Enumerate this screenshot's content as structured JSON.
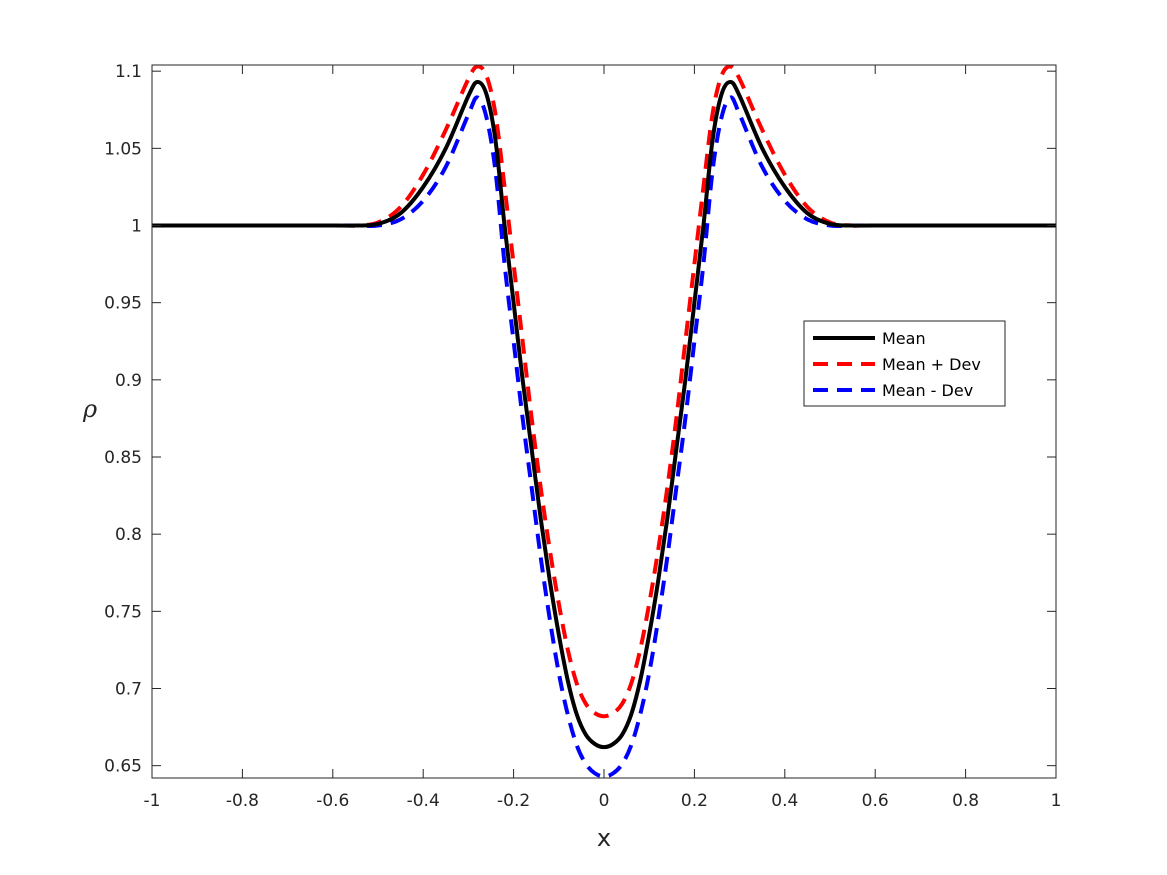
{
  "chart_data": {
    "type": "line",
    "title": "",
    "xlabel": "x",
    "ylabel": "ρ",
    "xlim": [
      -1,
      1
    ],
    "ylim": [
      0.642,
      1.104
    ],
    "xticks": [
      -1,
      -0.8,
      -0.6,
      -0.4,
      -0.2,
      0,
      0.2,
      0.4,
      0.6,
      0.8,
      1
    ],
    "xtick_labels": [
      "-1",
      "-0.8",
      "-0.6",
      "-0.4",
      "-0.2",
      "0",
      "0.2",
      "0.4",
      "0.6",
      "0.8",
      "1"
    ],
    "yticks": [
      0.65,
      0.7,
      0.75,
      0.8,
      0.85,
      0.9,
      0.95,
      1,
      1.05,
      1.1
    ],
    "ytick_labels": [
      "0.65",
      "0.7",
      "0.75",
      "0.8",
      "0.85",
      "0.9",
      "0.95",
      "1",
      "1.05",
      "1.1"
    ],
    "grid": false,
    "legend_position": "right",
    "x": [
      -1,
      -0.6,
      -0.55,
      -0.5,
      -0.45,
      -0.4,
      -0.35,
      -0.3,
      -0.28,
      -0.26,
      -0.24,
      -0.22,
      -0.2,
      -0.18,
      -0.16,
      -0.14,
      -0.12,
      -0.1,
      -0.08,
      -0.06,
      -0.04,
      -0.02,
      0,
      0.02,
      0.04,
      0.06,
      0.08,
      0.1,
      0.12,
      0.14,
      0.16,
      0.18,
      0.2,
      0.22,
      0.24,
      0.26,
      0.28,
      0.3,
      0.35,
      0.4,
      0.45,
      0.5,
      0.55,
      0.6,
      1
    ],
    "series": [
      {
        "name": "Mean",
        "color": "#000000",
        "dash": "solid",
        "values": [
          1,
          1,
          1,
          1.001,
          1.008,
          1.025,
          1.05,
          1.084,
          1.093,
          1.085,
          1.055,
          1.0,
          0.95,
          0.9,
          0.855,
          0.81,
          0.77,
          0.735,
          0.705,
          0.683,
          0.67,
          0.664,
          0.662,
          0.664,
          0.67,
          0.683,
          0.705,
          0.735,
          0.77,
          0.81,
          0.855,
          0.9,
          0.95,
          1.0,
          1.055,
          1.085,
          1.093,
          1.084,
          1.05,
          1.025,
          1.008,
          1.001,
          1,
          1,
          1
        ]
      },
      {
        "name": "Mean + Dev",
        "color": "#ff0000",
        "dash": "dashed",
        "values": [
          1,
          1,
          1,
          1.002,
          1.012,
          1.033,
          1.062,
          1.095,
          1.103,
          1.097,
          1.072,
          1.025,
          0.975,
          0.925,
          0.875,
          0.83,
          0.79,
          0.755,
          0.725,
          0.703,
          0.69,
          0.684,
          0.682,
          0.684,
          0.69,
          0.703,
          0.725,
          0.755,
          0.79,
          0.83,
          0.875,
          0.925,
          0.975,
          1.025,
          1.072,
          1.097,
          1.103,
          1.095,
          1.062,
          1.033,
          1.012,
          1.002,
          1,
          1,
          1
        ]
      },
      {
        "name": "Mean - Dev",
        "color": "#0000ff",
        "dash": "dashed",
        "values": [
          1,
          1,
          1,
          1.0,
          1.004,
          1.016,
          1.038,
          1.072,
          1.083,
          1.07,
          1.035,
          0.975,
          0.925,
          0.875,
          0.83,
          0.785,
          0.745,
          0.71,
          0.683,
          0.663,
          0.651,
          0.645,
          0.643,
          0.645,
          0.651,
          0.663,
          0.683,
          0.71,
          0.745,
          0.785,
          0.83,
          0.875,
          0.925,
          0.975,
          1.035,
          1.07,
          1.083,
          1.072,
          1.038,
          1.016,
          1.004,
          1.0,
          1,
          1,
          1
        ]
      }
    ]
  }
}
